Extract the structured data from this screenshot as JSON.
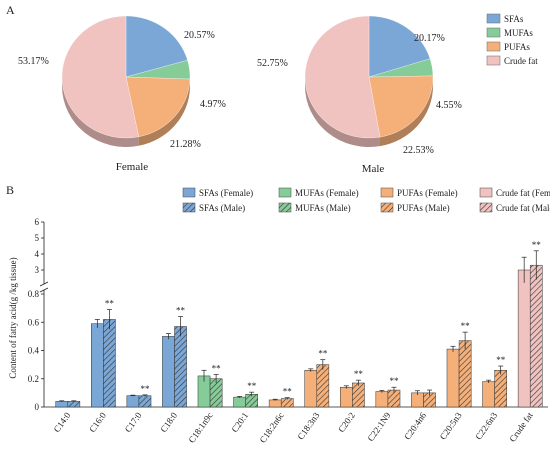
{
  "panel_a": {
    "label": "A",
    "legend": [
      {
        "name": "SFAs",
        "color": "#7ba7d6"
      },
      {
        "name": "MUFAs",
        "color": "#86cc98"
      },
      {
        "name": "PUFAs",
        "color": "#f5b07a"
      },
      {
        "name": "Crude fat",
        "color": "#f0c2c0"
      }
    ]
  },
  "panel_b": {
    "label": "B",
    "legend": [
      {
        "name": "SFAs (Female)",
        "color": "#7ba7d6",
        "hatch": false
      },
      {
        "name": "SFAs (Male)",
        "color": "#7ba7d6",
        "hatch": true
      },
      {
        "name": "MUFAs (Female)",
        "color": "#86cc98",
        "hatch": false
      },
      {
        "name": "MUFAs (Male)",
        "color": "#86cc98",
        "hatch": true
      },
      {
        "name": "PUFAs (Female)",
        "color": "#f5b07a",
        "hatch": false
      },
      {
        "name": "PUFAs (Male)",
        "color": "#f5b07a",
        "hatch": true
      },
      {
        "name": "Crude fat (Female)",
        "color": "#f0c2c0",
        "hatch": false
      },
      {
        "name": "Crude fat (Male)",
        "color": "#f0c2c0",
        "hatch": true
      }
    ]
  },
  "chart_data": [
    {
      "type": "pie",
      "title": "Female",
      "labels": [
        "SFAs",
        "MUFAs",
        "PUFAs",
        "Crude fat"
      ],
      "values": [
        20.57,
        4.97,
        21.28,
        53.17
      ],
      "value_labels": [
        "20.57%",
        "4.97%",
        "21.28%",
        "53.17%"
      ],
      "colors": [
        "#7ba7d6",
        "#86cc98",
        "#f5b07a",
        "#f0c2c0"
      ]
    },
    {
      "type": "pie",
      "title": "Male",
      "labels": [
        "SFAs",
        "MUFAs",
        "PUFAs",
        "Crude fat"
      ],
      "values": [
        20.17,
        4.55,
        22.53,
        52.75
      ],
      "value_labels": [
        "20.17%",
        "4.55%",
        "22.53%",
        "52.75%"
      ],
      "colors": [
        "#7ba7d6",
        "#86cc98",
        "#f5b07a",
        "#f0c2c0"
      ]
    },
    {
      "type": "bar",
      "ylabel": "Content of fatty acid(g /kg tissue)",
      "y_break": [
        0.8,
        2.5
      ],
      "ylim": [
        0,
        6
      ],
      "yticks_lower": [
        0,
        0.2,
        0.4,
        0.6,
        0.8
      ],
      "yticks_lower_labels": [
        "0",
        "0.2",
        "0.4",
        "0.6",
        "0.8"
      ],
      "yticks_upper": [
        3,
        4,
        5,
        6
      ],
      "yticks_upper_labels": [
        "3",
        "4",
        "5",
        "6"
      ],
      "categories": [
        "C14:0",
        "C16:0",
        "C17:0",
        "C18:0",
        "C18:1n9c",
        "C20:1",
        "C18:2n6c",
        "C18:3n3",
        "C20:2",
        "C22:1N9",
        "C20:4n6",
        "C20:5n3",
        "C22:6n3",
        "Crude fat"
      ],
      "groups": [
        "SFAs",
        "SFAs",
        "SFAs",
        "SFAs",
        "MUFAs",
        "MUFAs",
        "PUFAs",
        "PUFAs",
        "PUFAs",
        "PUFAs",
        "PUFAs",
        "PUFAs",
        "PUFAs",
        "Crude fat"
      ],
      "series": [
        {
          "name": "Female",
          "values": [
            0.04,
            0.59,
            0.08,
            0.5,
            0.22,
            0.07,
            0.05,
            0.26,
            0.14,
            0.11,
            0.1,
            0.41,
            0.18,
            3.0
          ],
          "errors": [
            0.004,
            0.03,
            0.004,
            0.02,
            0.04,
            0.005,
            0.005,
            0.01,
            0.01,
            0.008,
            0.015,
            0.02,
            0.01,
            0.8
          ]
        },
        {
          "name": "Male",
          "values": [
            0.04,
            0.62,
            0.08,
            0.57,
            0.2,
            0.09,
            0.06,
            0.3,
            0.17,
            0.12,
            0.1,
            0.47,
            0.26,
            3.3
          ],
          "errors": [
            0.004,
            0.07,
            0.006,
            0.07,
            0.03,
            0.015,
            0.006,
            0.035,
            0.02,
            0.02,
            0.02,
            0.06,
            0.03,
            0.9
          ]
        }
      ],
      "significance": [
        "",
        "**",
        "**",
        "**",
        "**",
        "**",
        "**",
        "**",
        "**",
        "**",
        "",
        "**",
        "**",
        "**"
      ]
    }
  ]
}
